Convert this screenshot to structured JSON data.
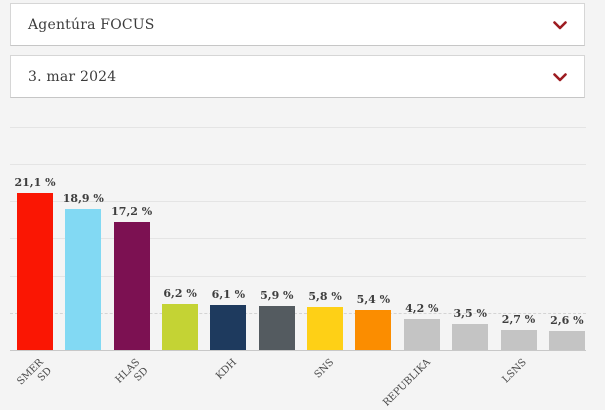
{
  "filters": {
    "agency": {
      "value": "Agentúra FOCUS"
    },
    "date": {
      "value": "3. mar 2024"
    }
  },
  "icons": {
    "dropdown": "chevron-down"
  },
  "colors": {
    "accent_red": "#9d1c21",
    "page_bg": "#f4f4f4",
    "box_border": "#d6d6d6",
    "gridline": "#e4e4e4",
    "gridline_dashed": "#d4d4d4",
    "axis": "#c8c8c8",
    "value_text": "#3e3e3e",
    "axis_text": "#4a4a4a"
  },
  "chart_data": {
    "type": "bar",
    "title": "",
    "xlabel": "",
    "ylabel": "",
    "unit": "%",
    "ylim": [
      0,
      30
    ],
    "gridlines_pct": [
      30,
      25,
      20,
      15,
      10
    ],
    "threshold_pct": 5,
    "grid": true,
    "legend": false,
    "categories": [
      "SMER SD",
      "",
      "HLAS SD",
      "",
      "KDH",
      "",
      "SNS",
      "",
      "REPUBLIKA",
      "",
      "LSNS",
      ""
    ],
    "values": [
      21.1,
      18.9,
      17.2,
      6.2,
      6.1,
      5.9,
      5.8,
      5.4,
      4.2,
      3.5,
      2.7,
      2.6
    ],
    "value_labels": [
      "21,1 %",
      "18,9 %",
      "17,2 %",
      "6,2 %",
      "6,1 %",
      "5,9 %",
      "5,8 %",
      "5,4 %",
      "4,2 %",
      "3,5 %",
      "2,7 %",
      "2,6 %"
    ],
    "bar_colors": [
      "#fa1603",
      "#82d9f3",
      "#7c1152",
      "#c4d334",
      "#1e3a5e",
      "#545b60",
      "#fed016",
      "#fb8d00",
      "#c4c4c4",
      "#c4c4c4",
      "#c4c4c4",
      "#c4c4c4"
    ]
  }
}
